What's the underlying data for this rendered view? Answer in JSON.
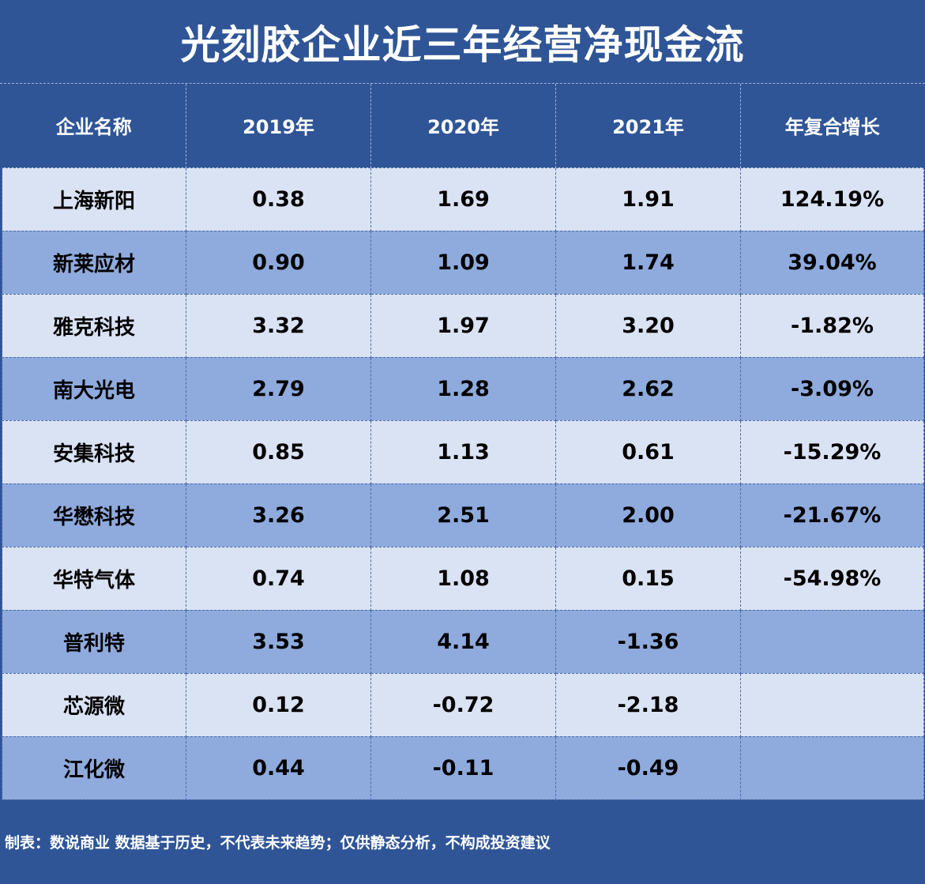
{
  "title": "光刻胶企业近三年经营净现金流",
  "table": {
    "headers": [
      "企业名称",
      "2019年",
      "2020年",
      "2021年",
      "年复合增长"
    ],
    "rows": [
      [
        "上海新阳",
        "0.38",
        "1.69",
        "1.91",
        "124.19%"
      ],
      [
        "新莱应材",
        "0.90",
        "1.09",
        "1.74",
        "39.04%"
      ],
      [
        "雅克科技",
        "3.32",
        "1.97",
        "3.20",
        "-1.82%"
      ],
      [
        "南大光电",
        "2.79",
        "1.28",
        "2.62",
        "-3.09%"
      ],
      [
        "安集科技",
        "0.85",
        "1.13",
        "0.61",
        "-15.29%"
      ],
      [
        "华懋科技",
        "3.26",
        "2.51",
        "2.00",
        "-21.67%"
      ],
      [
        "华特气体",
        "0.74",
        "1.08",
        "0.15",
        "-54.98%"
      ],
      [
        "普利特",
        "3.53",
        "4.14",
        "-1.36",
        ""
      ],
      [
        "芯源微",
        "0.12",
        "-0.72",
        "-2.18",
        ""
      ],
      [
        "江化微",
        "0.44",
        "-0.11",
        "-0.49",
        ""
      ]
    ]
  },
  "footer": "制表：数说商业 数据基于历史，不代表未来趋势；仅供静态分析，不构成投资建议",
  "colors": {
    "header_bg": "#2f5597",
    "row_light": "#dae3f3",
    "row_dark": "#8faadc"
  }
}
